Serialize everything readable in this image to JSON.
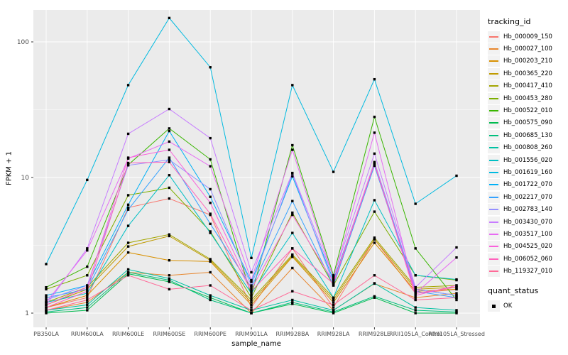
{
  "chart_data": {
    "type": "line",
    "title": "",
    "xlabel": "sample_name",
    "ylabel": "FPKM + 1",
    "y_scale": "log10",
    "y_ticks": [
      1,
      10,
      100
    ],
    "ylim": [
      0.78,
      176
    ],
    "grid": "on",
    "legend_position": "right",
    "legend_title": "tracking_id",
    "quant_legend": {
      "title": "quant_status",
      "items": [
        {
          "label": "OK",
          "marker": "black-square"
        }
      ]
    },
    "colors": {
      "panel_bg": "#EBEBEB",
      "gridline": "#FFFFFF",
      "axis_text": "#4D4D4D",
      "point": "#000000",
      "legend_key_bg": "#F2F2F2"
    },
    "categories": [
      "PB350LA",
      "RRIM600LA",
      "RRIM600LE",
      "RRIM600SE",
      "RRIM600PE",
      "RRIM901LA",
      "RRIM928BA",
      "RRIM928LA",
      "RRIM928LE",
      "RRII105LA_Control",
      "RRII105LA_Stressed"
    ],
    "series": [
      {
        "name": "Hb_000009_150",
        "color": "#F8766D",
        "values": [
          1.1,
          1.3,
          6.0,
          7.0,
          5.3,
          1.1,
          3.0,
          1.1,
          3.5,
          1.4,
          1.5
        ]
      },
      {
        "name": "Hb_000027_100",
        "color": "#E8862D",
        "values": [
          1.05,
          1.2,
          2.0,
          1.9,
          2.0,
          1.0,
          2.15,
          1.05,
          1.65,
          1.3,
          1.4
        ]
      },
      {
        "name": "Hb_000203_210",
        "color": "#D89000",
        "values": [
          1.1,
          1.35,
          2.8,
          2.45,
          2.4,
          1.15,
          2.6,
          1.2,
          3.3,
          1.45,
          1.5
        ]
      },
      {
        "name": "Hb_000365_220",
        "color": "#C09B00",
        "values": [
          1.15,
          1.5,
          3.1,
          3.7,
          2.45,
          1.2,
          2.65,
          1.25,
          3.5,
          1.5,
          1.55
        ]
      },
      {
        "name": "Hb_000417_410",
        "color": "#A3A500",
        "values": [
          1.2,
          1.55,
          3.3,
          3.8,
          2.5,
          1.25,
          2.7,
          1.3,
          3.6,
          1.55,
          1.6
        ]
      },
      {
        "name": "Hb_000453_280",
        "color": "#7CAE00",
        "values": [
          1.5,
          1.9,
          7.4,
          8.4,
          4.0,
          1.3,
          5.5,
          1.6,
          5.6,
          1.9,
          1.75
        ]
      },
      {
        "name": "Hb_000522_010",
        "color": "#39B600",
        "values": [
          1.55,
          2.2,
          12.4,
          23.0,
          13.6,
          1.35,
          17.3,
          1.9,
          28.0,
          3.0,
          1.25
        ]
      },
      {
        "name": "Hb_000575_090",
        "color": "#00BB4E",
        "values": [
          1.0,
          1.05,
          1.95,
          1.7,
          1.3,
          1.0,
          1.17,
          1.0,
          1.3,
          1.0,
          1.0
        ]
      },
      {
        "name": "Hb_000685_130",
        "color": "#00BF7D",
        "values": [
          1.02,
          1.1,
          2.0,
          1.75,
          1.25,
          1.0,
          1.2,
          1.02,
          1.33,
          1.05,
          1.02
        ]
      },
      {
        "name": "Hb_000808_260",
        "color": "#00C1A3",
        "values": [
          1.05,
          1.15,
          2.1,
          1.8,
          1.35,
          1.05,
          1.25,
          1.05,
          1.66,
          1.1,
          1.05
        ]
      },
      {
        "name": "Hb_001556_020",
        "color": "#00BFC4",
        "values": [
          1.2,
          1.4,
          4.4,
          10.4,
          3.9,
          1.4,
          3.9,
          1.3,
          6.8,
          1.9,
          1.77
        ]
      },
      {
        "name": "Hb_001619_160",
        "color": "#00BAE0",
        "values": [
          2.3,
          9.6,
          48.0,
          150,
          65.0,
          2.55,
          48.0,
          11.0,
          53.0,
          6.4,
          10.3
        ]
      },
      {
        "name": "Hb_001722_070",
        "color": "#00B0F6",
        "values": [
          1.35,
          1.6,
          6.3,
          22.0,
          7.2,
          1.7,
          10.2,
          1.75,
          12.5,
          1.5,
          1.35
        ]
      },
      {
        "name": "Hb_002217_070",
        "color": "#35A2FF",
        "values": [
          1.3,
          1.5,
          5.8,
          14.0,
          4.55,
          1.55,
          6.7,
          1.6,
          12.2,
          1.45,
          1.3
        ]
      },
      {
        "name": "Hb_002783_140",
        "color": "#9590FF",
        "values": [
          1.25,
          1.6,
          12.3,
          13.5,
          8.2,
          1.6,
          10.7,
          1.65,
          13.0,
          1.5,
          1.35
        ]
      },
      {
        "name": "Hb_003430_070",
        "color": "#C77CFF",
        "values": [
          1.15,
          3.0,
          21.0,
          32.0,
          19.5,
          2.0,
          10.8,
          1.85,
          15.0,
          1.55,
          3.05
        ]
      },
      {
        "name": "Hb_003517_100",
        "color": "#E76BF3",
        "values": [
          1.2,
          2.9,
          13.8,
          18.4,
          12.1,
          1.75,
          16.0,
          1.8,
          21.4,
          1.4,
          2.57
        ]
      },
      {
        "name": "Hb_004525_020",
        "color": "#FA62DB",
        "values": [
          1.15,
          1.55,
          14.0,
          16.0,
          6.5,
          1.5,
          5.3,
          1.7,
          12.8,
          1.35,
          1.6
        ]
      },
      {
        "name": "Hb_006052_060",
        "color": "#FF62BC",
        "values": [
          1.1,
          1.45,
          12.8,
          13.0,
          5.4,
          1.45,
          3.0,
          1.65,
          12.6,
          1.4,
          1.55
        ]
      },
      {
        "name": "Hb_119327_010",
        "color": "#FF6A98",
        "values": [
          1.05,
          1.25,
          1.9,
          1.5,
          1.6,
          1.05,
          1.45,
          1.15,
          1.9,
          1.25,
          1.3
        ]
      }
    ]
  }
}
